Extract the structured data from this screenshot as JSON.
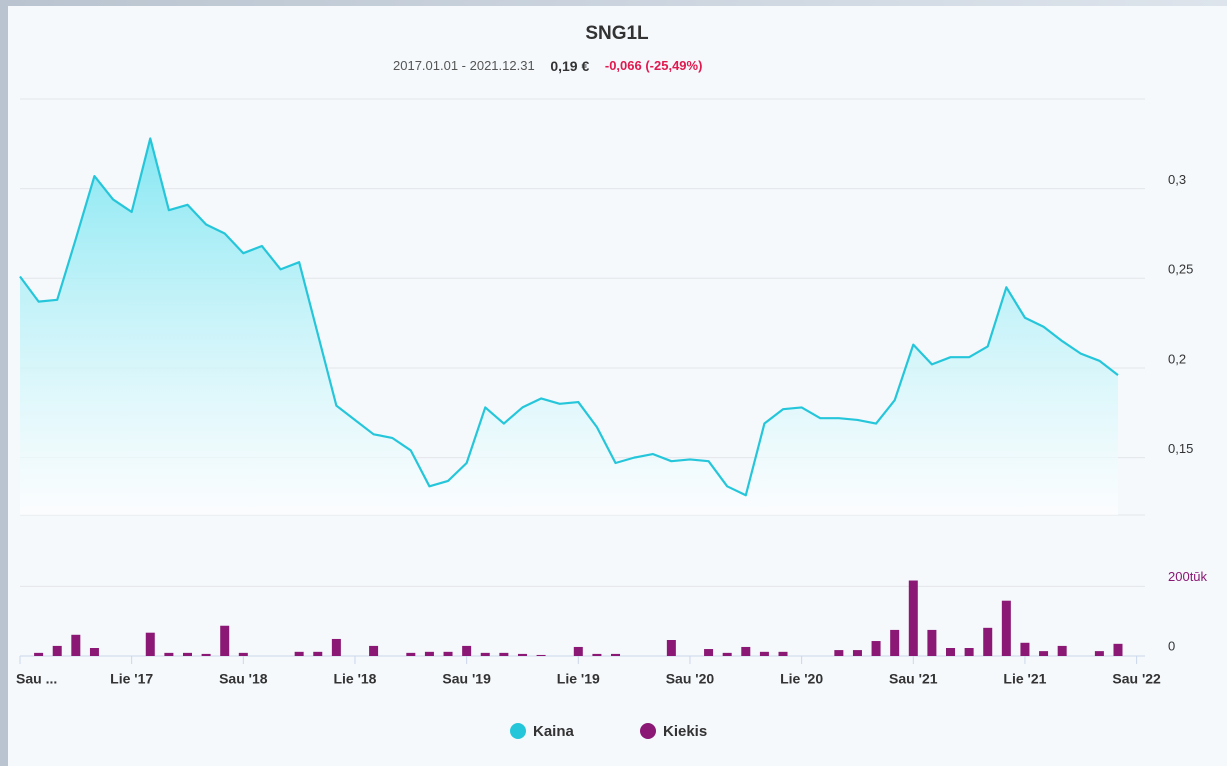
{
  "chart_data": {
    "type": "area",
    "title": "SNG1L",
    "subtitle": {
      "range": "2017.01.01 - 2021.12.31",
      "price": "0,19 €",
      "change": "-0,066 (-25,49%)"
    },
    "x": [
      "2017-01",
      "2017-02",
      "2017-03",
      "2017-04",
      "2017-05",
      "2017-06",
      "2017-07",
      "2017-08",
      "2017-09",
      "2017-10",
      "2017-11",
      "2017-12",
      "2018-01",
      "2018-02",
      "2018-03",
      "2018-04",
      "2018-05",
      "2018-06",
      "2018-07",
      "2018-08",
      "2018-09",
      "2018-10",
      "2018-11",
      "2018-12",
      "2019-01",
      "2019-02",
      "2019-03",
      "2019-04",
      "2019-05",
      "2019-06",
      "2019-07",
      "2019-08",
      "2019-09",
      "2019-10",
      "2019-11",
      "2019-12",
      "2020-01",
      "2020-02",
      "2020-03",
      "2020-04",
      "2020-05",
      "2020-06",
      "2020-07",
      "2020-08",
      "2020-09",
      "2020-10",
      "2020-11",
      "2020-12",
      "2021-01",
      "2021-02",
      "2021-03",
      "2021-04",
      "2021-05",
      "2021-06",
      "2021-07",
      "2021-08",
      "2021-09",
      "2021-10",
      "2021-11",
      "2021-12"
    ],
    "xlim": [
      "2017-01",
      "2021-12"
    ],
    "xticks": [
      {
        "value": "2017-01",
        "label": "Sau ..."
      },
      {
        "value": "2017-07",
        "label": "Lie '17"
      },
      {
        "value": "2018-01",
        "label": "Sau '18"
      },
      {
        "value": "2018-07",
        "label": "Lie '18"
      },
      {
        "value": "2019-01",
        "label": "Sau '19"
      },
      {
        "value": "2019-07",
        "label": "Lie '19"
      },
      {
        "value": "2020-01",
        "label": "Sau '20"
      },
      {
        "value": "2020-07",
        "label": "Lie '20"
      },
      {
        "value": "2021-01",
        "label": "Sau '21"
      },
      {
        "value": "2021-07",
        "label": "Lie '21"
      },
      {
        "value": "2022-01",
        "label": "Sau '22"
      }
    ],
    "series": [
      {
        "name": "Kaina",
        "color": "#26c6da",
        "values": [
          0.251,
          0.237,
          0.238,
          0.272,
          0.307,
          0.294,
          0.287,
          0.328,
          0.288,
          0.291,
          0.28,
          0.275,
          0.264,
          0.268,
          0.255,
          0.259,
          0.219,
          0.179,
          0.171,
          0.163,
          0.161,
          0.154,
          0.134,
          0.137,
          0.147,
          0.178,
          0.169,
          0.178,
          0.183,
          0.18,
          0.181,
          0.167,
          0.147,
          0.15,
          0.152,
          0.148,
          0.149,
          0.148,
          0.134,
          0.129,
          0.169,
          0.177,
          0.178,
          0.172,
          0.172,
          0.171,
          0.169,
          0.182,
          0.213,
          0.202,
          0.206,
          0.206,
          0.212,
          0.245,
          0.228,
          0.223,
          0.215,
          0.208,
          0.204,
          0.196
        ]
      },
      {
        "name": "Kiekis",
        "color": "#8a1874",
        "type": "bar",
        "axis": "y2",
        "values": [
          0,
          9000,
          29000,
          61000,
          23000,
          0,
          0,
          67000,
          9000,
          9000,
          6000,
          87000,
          9000,
          0,
          0,
          12000,
          12000,
          49000,
          0,
          29000,
          0,
          9000,
          12000,
          12000,
          29000,
          9000,
          9000,
          6000,
          3000,
          0,
          26000,
          6000,
          6000,
          0,
          0,
          46000,
          0,
          20000,
          9000,
          26000,
          12000,
          12000,
          0,
          0,
          17000,
          17000,
          43000,
          75000,
          217000,
          75000,
          23000,
          23000,
          81000,
          159000,
          38000,
          14000,
          29000,
          0,
          14000,
          35000
        ]
      }
    ],
    "ylim": [
      0.118,
      0.35
    ],
    "yticks": [
      {
        "value": 0.15,
        "label": "0,15"
      },
      {
        "value": 0.2,
        "label": "0,2"
      },
      {
        "value": 0.25,
        "label": "0,25"
      },
      {
        "value": 0.3,
        "label": "0,3"
      }
    ],
    "y2lim": [
      0,
      230000
    ],
    "y2ticks": [
      0,
      {
        "value": 200000,
        "label": "200tūk"
      }
    ],
    "grid": true,
    "legend": "bottom"
  }
}
